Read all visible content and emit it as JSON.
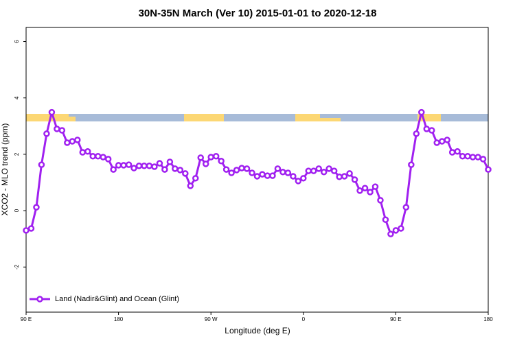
{
  "chart_data": {
    "type": "line",
    "title": "30N-35N March (Ver 10)   2015-01-01 to 2020-12-18",
    "x_label": "Longitude (deg E)",
    "y_label": "XCO2 - MLO trend (ppm)",
    "x": [
      90,
      95,
      100,
      105,
      110,
      115,
      120,
      125,
      130,
      135,
      140,
      145,
      150,
      155,
      160,
      165,
      170,
      175,
      180,
      185,
      190,
      195,
      200,
      205,
      210,
      215,
      220,
      225,
      230,
      235,
      240,
      245,
      250,
      255,
      260,
      265,
      270,
      275,
      280,
      285,
      290,
      295,
      300,
      305,
      310,
      315,
      320,
      325,
      330,
      335,
      340,
      345,
      350,
      355,
      360,
      365,
      370,
      375,
      380,
      385,
      390,
      395,
      400,
      405,
      410,
      415,
      420,
      425,
      430,
      435,
      440,
      445,
      450,
      455,
      460,
      465,
      470,
      475,
      480,
      485,
      490,
      495,
      500,
      505,
      510,
      515,
      520,
      525,
      530,
      535,
      540
    ],
    "series": [
      {
        "name": "Land (Nadir&Glint) and Ocean (Glint)",
        "color": "#a020f0",
        "values": [
          -0.7,
          -0.63,
          0.12,
          1.63,
          2.73,
          3.49,
          2.9,
          2.85,
          2.41,
          2.46,
          2.51,
          2.07,
          2.1,
          1.93,
          1.93,
          1.9,
          1.83,
          1.46,
          1.61,
          1.61,
          1.63,
          1.51,
          1.59,
          1.59,
          1.59,
          1.56,
          1.68,
          1.46,
          1.73,
          1.49,
          1.44,
          1.32,
          0.88,
          1.15,
          1.88,
          1.66,
          1.9,
          1.93,
          1.76,
          1.46,
          1.34,
          1.44,
          1.51,
          1.49,
          1.34,
          1.22,
          1.29,
          1.24,
          1.24,
          1.49,
          1.37,
          1.34,
          1.22,
          1.05,
          1.15,
          1.41,
          1.41,
          1.49,
          1.37,
          1.49,
          1.41,
          1.2,
          1.22,
          1.32,
          1.1,
          0.71,
          0.8,
          0.66,
          0.85,
          0.37,
          -0.32,
          -0.83,
          -0.7,
          -0.63,
          0.12,
          1.63,
          2.73,
          3.49,
          2.9,
          2.85,
          2.41,
          2.46,
          2.51,
          2.07,
          2.1,
          1.93,
          1.93,
          1.9,
          1.9,
          1.83,
          1.46
        ]
      }
    ],
    "xlim": [
      90,
      540
    ],
    "xticks": [
      {
        "value": 90,
        "label": "90 E"
      },
      180,
      {
        "value": 270,
        "label": "90 W"
      },
      {
        "value": 360,
        "label": "0"
      },
      {
        "value": 450,
        "label": "90 E"
      },
      {
        "value": 540,
        "label": "180"
      }
    ],
    "ylim": [
      -3.6,
      6.5
    ],
    "yticks": [
      -2,
      0,
      2,
      4,
      6
    ],
    "legend": "bottom-left"
  }
}
